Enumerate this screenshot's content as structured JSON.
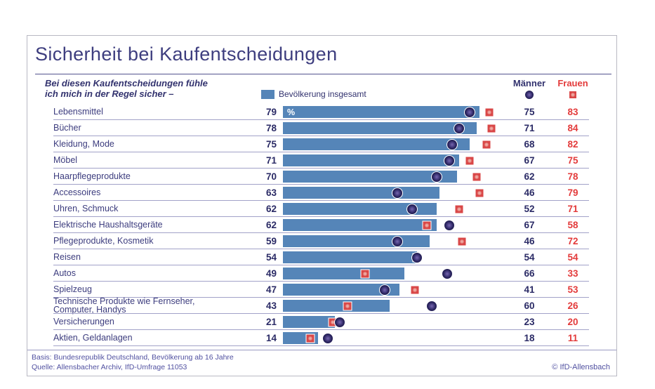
{
  "title": "Sicherheit bei Kaufentscheidungen",
  "subtitle": {
    "line1": "Bei diesen Kaufentscheidungen fühle",
    "line2": "ich mich in der Regel sicher –"
  },
  "legend": {
    "total_label": "Bevölkerung insgesamt",
    "men_label": "Männer",
    "women_label": "Frauen"
  },
  "percent_sign": "%",
  "footer": {
    "basis": "Basis: Bundesrepublik Deutschland, Bevölkerung ab 16 Jahre",
    "quelle": "Quelle: Allensbacher Archiv, IfD-Umfrage 11053",
    "copyright": "© IfD-Allensbach"
  },
  "colors": {
    "bar_blue": "#5585b8",
    "navy_text": "#32326e",
    "red_text": "#e33b3b",
    "men_marker": "#262159",
    "women_marker": "#d94747",
    "separator": "#a2a2c8"
  },
  "chart_data": {
    "type": "bar",
    "orientation": "horizontal",
    "title": "Sicherheit bei Kaufentscheidungen",
    "xlim": [
      0,
      100
    ],
    "unit": "%",
    "grid": false,
    "legend_position": "top",
    "categories": [
      "Lebensmittel",
      "Bücher",
      "Kleidung, Mode",
      "Möbel",
      "Haarpflegeprodukte",
      "Accessoires",
      "Uhren, Schmuck",
      "Elektrische Haushaltsgeräte",
      "Pflegeprodukte, Kosmetik",
      "Reisen",
      "Autos",
      "Spielzeug",
      "Technische Produkte wie Fernseher,\nComputer, Handys",
      "Versicherungen",
      "Aktien, Geldanlagen"
    ],
    "series": [
      {
        "name": "Bevölkerung insgesamt",
        "style": "bar",
        "values": [
          79,
          78,
          75,
          71,
          70,
          63,
          62,
          62,
          59,
          54,
          49,
          47,
          43,
          21,
          14
        ]
      },
      {
        "name": "Männer",
        "style": "circle-marker",
        "values": [
          75,
          71,
          68,
          67,
          62,
          46,
          52,
          67,
          46,
          54,
          66,
          41,
          60,
          23,
          18
        ]
      },
      {
        "name": "Frauen",
        "style": "square-marker",
        "values": [
          83,
          84,
          82,
          75,
          78,
          79,
          71,
          58,
          72,
          54,
          33,
          53,
          26,
          20,
          11
        ]
      }
    ]
  }
}
